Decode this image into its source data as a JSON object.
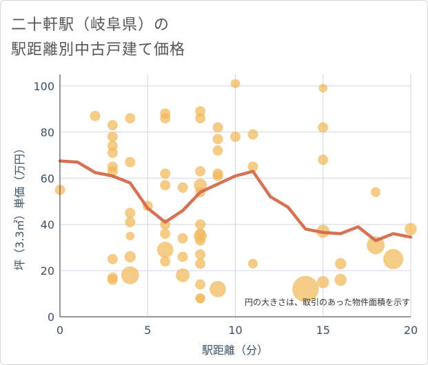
{
  "title_line1": "二十軒駅（岐阜県）の",
  "title_line2": "駅距離別中古戸建て価格",
  "chart_data": {
    "type": "scatter",
    "xlabel": "駅距離（分）",
    "ylabel": "坪（3.3㎡）単価（万円）",
    "xlim": [
      0,
      20
    ],
    "ylim": [
      0,
      105
    ],
    "xticks": [
      0,
      5,
      10,
      15,
      20
    ],
    "yticks": [
      0,
      20,
      40,
      60,
      80,
      100
    ],
    "grid": true,
    "note": "円の大きさは、取引のあった物件面積を示す",
    "colors": {
      "bubble": "#f0b85a",
      "line": "#d4694a",
      "grid": "#cdd6e0"
    },
    "scatter_points": [
      {
        "x": 0,
        "y": 55,
        "s": 1
      },
      {
        "x": 2,
        "y": 87,
        "s": 1
      },
      {
        "x": 3,
        "y": 83,
        "s": 1
      },
      {
        "x": 3,
        "y": 78,
        "s": 1
      },
      {
        "x": 3,
        "y": 74,
        "s": 1
      },
      {
        "x": 3,
        "y": 71,
        "s": 1
      },
      {
        "x": 3,
        "y": 65,
        "s": 1
      },
      {
        "x": 3,
        "y": 63,
        "s": 1
      },
      {
        "x": 3,
        "y": 25,
        "s": 1
      },
      {
        "x": 3,
        "y": 17,
        "s": 1
      },
      {
        "x": 3,
        "y": 16,
        "s": 1
      },
      {
        "x": 4,
        "y": 86,
        "s": 1
      },
      {
        "x": 4,
        "y": 67,
        "s": 1
      },
      {
        "x": 4,
        "y": 45,
        "s": 1
      },
      {
        "x": 4,
        "y": 41,
        "s": 1
      },
      {
        "x": 4,
        "y": 35,
        "s": 0.7
      },
      {
        "x": 4,
        "y": 26,
        "s": 1.2
      },
      {
        "x": 4,
        "y": 18,
        "s": 3
      },
      {
        "x": 5,
        "y": 48,
        "s": 1
      },
      {
        "x": 6,
        "y": 88,
        "s": 1
      },
      {
        "x": 6,
        "y": 86,
        "s": 1
      },
      {
        "x": 6,
        "y": 62,
        "s": 1
      },
      {
        "x": 6,
        "y": 57,
        "s": 1
      },
      {
        "x": 6,
        "y": 40,
        "s": 1
      },
      {
        "x": 6,
        "y": 36,
        "s": 1
      },
      {
        "x": 6,
        "y": 29,
        "s": 2.5
      },
      {
        "x": 6,
        "y": 24,
        "s": 1
      },
      {
        "x": 7,
        "y": 56,
        "s": 1
      },
      {
        "x": 7,
        "y": 34,
        "s": 1
      },
      {
        "x": 7,
        "y": 26,
        "s": 1
      },
      {
        "x": 7,
        "y": 18,
        "s": 1.8
      },
      {
        "x": 8,
        "y": 89,
        "s": 1
      },
      {
        "x": 8,
        "y": 86,
        "s": 1
      },
      {
        "x": 8,
        "y": 63,
        "s": 1
      },
      {
        "x": 8,
        "y": 57,
        "s": 1.6
      },
      {
        "x": 8,
        "y": 54,
        "s": 1
      },
      {
        "x": 8,
        "y": 40,
        "s": 1
      },
      {
        "x": 8,
        "y": 36,
        "s": 1
      },
      {
        "x": 8,
        "y": 35,
        "s": 1.6
      },
      {
        "x": 8,
        "y": 33,
        "s": 1
      },
      {
        "x": 8,
        "y": 27,
        "s": 1
      },
      {
        "x": 8,
        "y": 23,
        "s": 1
      },
      {
        "x": 8,
        "y": 14,
        "s": 1
      },
      {
        "x": 8,
        "y": 8,
        "s": 0.9
      },
      {
        "x": 8,
        "y": 8,
        "s": 0.9
      },
      {
        "x": 9,
        "y": 82,
        "s": 1
      },
      {
        "x": 9,
        "y": 77,
        "s": 1
      },
      {
        "x": 9,
        "y": 72,
        "s": 1
      },
      {
        "x": 9,
        "y": 62,
        "s": 1
      },
      {
        "x": 9,
        "y": 61,
        "s": 1
      },
      {
        "x": 9,
        "y": 12,
        "s": 2.5
      },
      {
        "x": 10,
        "y": 101,
        "s": 0.8
      },
      {
        "x": 10,
        "y": 78,
        "s": 1
      },
      {
        "x": 11,
        "y": 79,
        "s": 1
      },
      {
        "x": 11,
        "y": 65,
        "s": 1
      },
      {
        "x": 11,
        "y": 23,
        "s": 0.9
      },
      {
        "x": 14,
        "y": 12,
        "s": 6.5
      },
      {
        "x": 15,
        "y": 99,
        "s": 0.7
      },
      {
        "x": 15,
        "y": 82,
        "s": 1
      },
      {
        "x": 15,
        "y": 68,
        "s": 1
      },
      {
        "x": 15,
        "y": 37,
        "s": 1.6
      },
      {
        "x": 15,
        "y": 15,
        "s": 1.4
      },
      {
        "x": 16,
        "y": 23,
        "s": 1.2
      },
      {
        "x": 16,
        "y": 16,
        "s": 1.4
      },
      {
        "x": 18,
        "y": 54,
        "s": 0.9
      },
      {
        "x": 18,
        "y": 31,
        "s": 3
      },
      {
        "x": 19,
        "y": 25,
        "s": 3.8
      },
      {
        "x": 20,
        "y": 38,
        "s": 1.4
      }
    ],
    "line_series": {
      "x": [
        0,
        1,
        2,
        3,
        4,
        5,
        6,
        7,
        8,
        9,
        10,
        11,
        12,
        13,
        14,
        15,
        16,
        17,
        18,
        19,
        20
      ],
      "y": [
        67.5,
        67,
        62.5,
        61,
        58,
        47,
        41,
        46,
        54,
        57.5,
        61,
        63,
        52,
        47.5,
        38,
        36.5,
        36,
        39,
        33,
        36,
        34.5
      ]
    }
  }
}
